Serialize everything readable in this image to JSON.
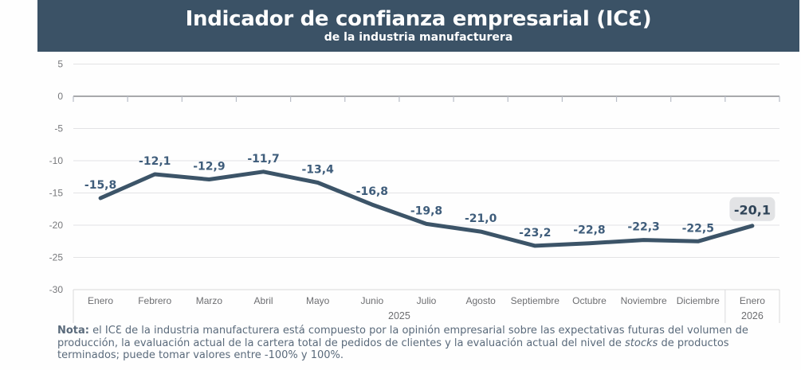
{
  "header": {
    "title": "Indicador de confianza empresarial (ICƐ)",
    "subtitle": "de la industria manufacturera",
    "background_color": "#3b5266",
    "text_color": "#ffffff"
  },
  "chart_data": {
    "type": "line",
    "title": "Indicador de confianza empresarial (ICE) de la industria manufacturera",
    "categories": [
      "Enero",
      "Febrero",
      "Marzo",
      "Abril",
      "Mayo",
      "Junio",
      "Julio",
      "Agosto",
      "Septiembre",
      "Octubre",
      "Noviembre",
      "Diciembre",
      "Enero"
    ],
    "months_in_first_year": 12,
    "year_first": "2025",
    "year_second": "2026",
    "values": [
      -15.8,
      -12.1,
      -12.9,
      -11.7,
      -13.4,
      -16.8,
      -19.8,
      -21.0,
      -23.2,
      -22.8,
      -22.3,
      -22.5,
      -20.1
    ],
    "value_labels": [
      "-15,8",
      "-12,1",
      "-12,9",
      "-11,7",
      "-13,4",
      "-16,8",
      "-19,8",
      "-21,0",
      "-23,2",
      "-22,8",
      "-22,3",
      "-22,5",
      "-20,1"
    ],
    "highlight_last_point": true,
    "ylim": [
      -30,
      5
    ],
    "yticks": [
      5,
      0,
      -5,
      -10,
      -15,
      -20,
      -25,
      -30
    ],
    "ytick_labels": [
      "5",
      "0",
      "-5",
      "-10",
      "-15",
      "-20",
      "-25",
      "-30"
    ],
    "grid": true,
    "legend": "none",
    "line_color": "#3c5468",
    "value_label_color": "#3f5d7b",
    "grid_color": "#e3e3e5",
    "zero_axis_color": "#9b9da1",
    "badge_bg_color": "#e2e3e5",
    "badge_text_color": "#2f4458"
  },
  "note": {
    "label": "Nota:",
    "line1": " el ICƐ de la industria manufacturera está compuesto por la opinión empresarial sobre las expectativas futuras del volumen de",
    "line2_a": "producción, la evaluación actual de la cartera total de pedidos de clientes y la evaluación actual del nivel de ",
    "line2_italic": "stocks",
    "line2_b": " de productos",
    "line3": "terminados; puede tomar valores entre -100% y 100%."
  }
}
